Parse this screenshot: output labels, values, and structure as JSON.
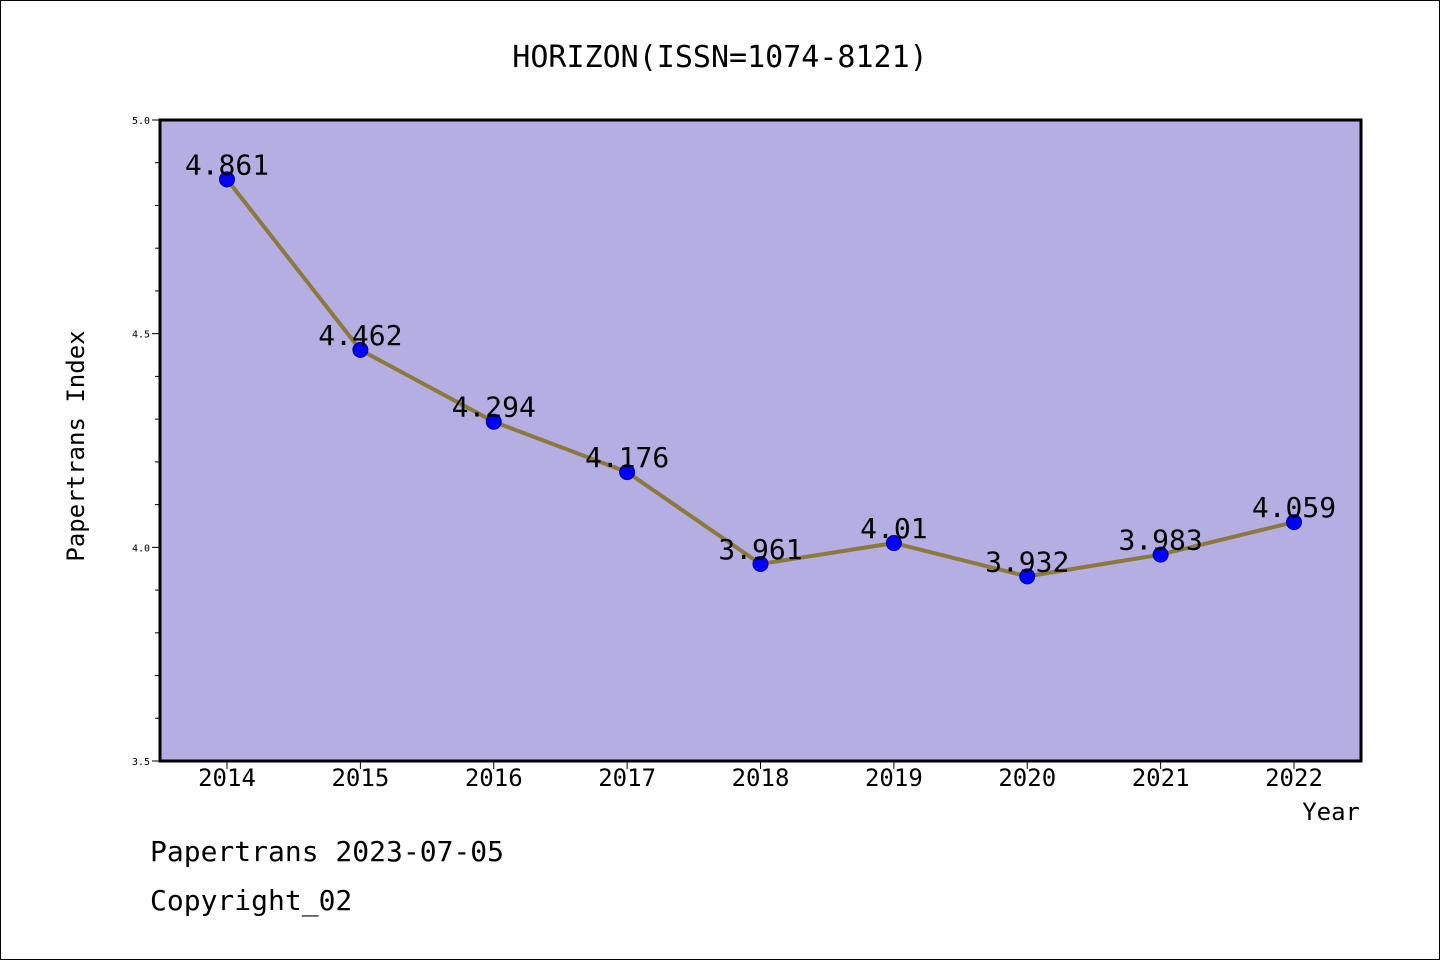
{
  "chart_data": {
    "type": "line",
    "title": "HORIZON(ISSN=1074-8121)",
    "xlabel": "Year",
    "ylabel": "Papertrans Index",
    "categories": [
      "2014",
      "2015",
      "2016",
      "2017",
      "2018",
      "2019",
      "2020",
      "2021",
      "2022"
    ],
    "values": [
      4.861,
      4.462,
      4.294,
      4.176,
      3.961,
      4.01,
      3.932,
      3.983,
      4.059
    ],
    "data_labels": [
      "4.861",
      "4.462",
      "4.294",
      "4.176",
      "3.961",
      "4.01",
      "3.932",
      "3.983",
      "4.059"
    ],
    "ylim": [
      3.5,
      5.0
    ],
    "yticks": [
      3.5,
      4.0,
      4.5,
      5.0
    ],
    "ytick_labels": [
      "3.5",
      "4.0",
      "4.5",
      "5.0"
    ],
    "grid": false,
    "legend": "none",
    "colors": {
      "plot_background": "#b5aee2",
      "line": "#8c7a3c",
      "marker": "#0000ff",
      "marker_edge": "#000080"
    }
  },
  "footer": {
    "line1": "Papertrans 2023-07-05",
    "line2": "Copyright_02"
  }
}
